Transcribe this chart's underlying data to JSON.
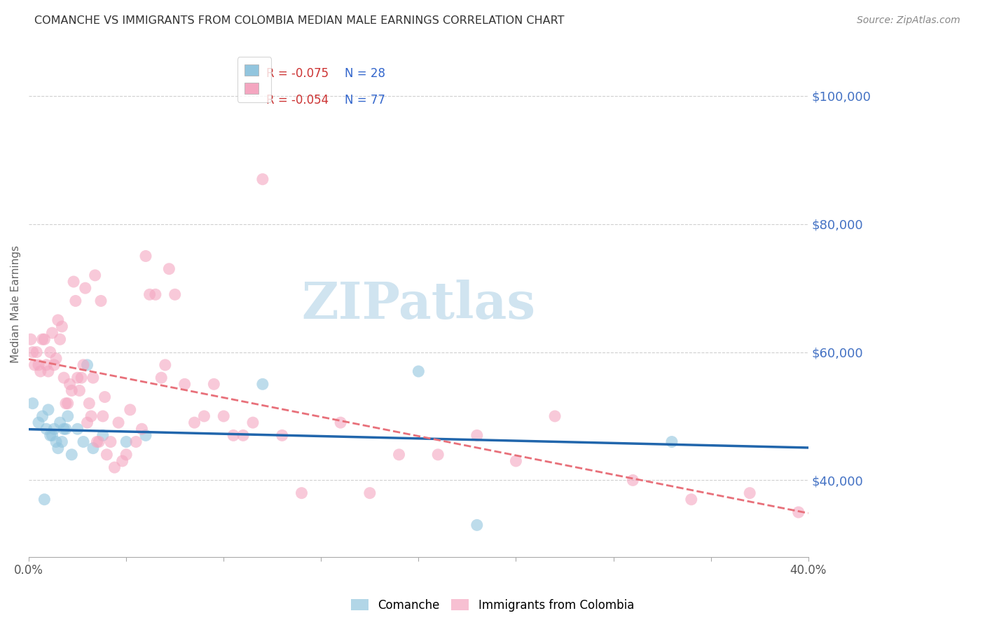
{
  "title": "COMANCHE VS IMMIGRANTS FROM COLOMBIA MEDIAN MALE EARNINGS CORRELATION CHART",
  "source": "Source: ZipAtlas.com",
  "ylabel": "Median Male Earnings",
  "ytick_labels": [
    "$40,000",
    "$60,000",
    "$80,000",
    "$100,000"
  ],
  "ytick_values": [
    40000,
    60000,
    80000,
    100000
  ],
  "ylim": [
    28000,
    107000
  ],
  "xlim": [
    0.0,
    0.4
  ],
  "xtick_vals": [
    0.0,
    0.05,
    0.1,
    0.15,
    0.2,
    0.25,
    0.3,
    0.35,
    0.4
  ],
  "xtick_labels": [
    "0.0%",
    "",
    "",
    "",
    "",
    "",
    "",
    "",
    "40.0%"
  ],
  "comanche_label": "Comanche",
  "colombia_label": "Immigrants from Colombia",
  "comanche_color": "#92c5de",
  "colombia_color": "#f4a6c0",
  "trendline_blue_color": "#2166ac",
  "trendline_pink_color": "#e8707a",
  "watermark_text": "ZIPatlas",
  "watermark_color": "#d0e4f0",
  "background_color": "#ffffff",
  "grid_color": "#d0d0d0",
  "title_color": "#333333",
  "right_tick_color": "#4472c4",
  "legend_r1": "R = -0.075",
  "legend_n1": "N = 28",
  "legend_r2": "R = -0.054",
  "legend_n2": "N = 77",
  "legend_r_color": "#cc3333",
  "legend_n_color": "#3366cc",
  "comanche_x": [
    0.002,
    0.005,
    0.007,
    0.008,
    0.009,
    0.01,
    0.011,
    0.012,
    0.013,
    0.014,
    0.015,
    0.016,
    0.017,
    0.018,
    0.019,
    0.02,
    0.022,
    0.025,
    0.028,
    0.03,
    0.033,
    0.038,
    0.05,
    0.06,
    0.12,
    0.2,
    0.23,
    0.33
  ],
  "comanche_y": [
    52000,
    49000,
    50000,
    37000,
    48000,
    51000,
    47000,
    47000,
    48000,
    46000,
    45000,
    49000,
    46000,
    48000,
    48000,
    50000,
    44000,
    48000,
    46000,
    58000,
    45000,
    47000,
    46000,
    47000,
    55000,
    57000,
    33000,
    46000
  ],
  "colombia_x": [
    0.001,
    0.002,
    0.003,
    0.004,
    0.005,
    0.006,
    0.007,
    0.008,
    0.009,
    0.01,
    0.011,
    0.012,
    0.013,
    0.014,
    0.015,
    0.016,
    0.017,
    0.018,
    0.019,
    0.02,
    0.021,
    0.022,
    0.023,
    0.024,
    0.025,
    0.026,
    0.027,
    0.028,
    0.029,
    0.03,
    0.031,
    0.032,
    0.033,
    0.034,
    0.035,
    0.036,
    0.037,
    0.038,
    0.039,
    0.04,
    0.042,
    0.044,
    0.046,
    0.048,
    0.05,
    0.052,
    0.055,
    0.058,
    0.06,
    0.062,
    0.065,
    0.068,
    0.07,
    0.072,
    0.075,
    0.08,
    0.085,
    0.09,
    0.095,
    0.1,
    0.105,
    0.11,
    0.115,
    0.12,
    0.13,
    0.14,
    0.16,
    0.175,
    0.19,
    0.21,
    0.23,
    0.25,
    0.27,
    0.31,
    0.34,
    0.37,
    0.395
  ],
  "colombia_y": [
    62000,
    60000,
    58000,
    60000,
    58000,
    57000,
    62000,
    62000,
    58000,
    57000,
    60000,
    63000,
    58000,
    59000,
    65000,
    62000,
    64000,
    56000,
    52000,
    52000,
    55000,
    54000,
    71000,
    68000,
    56000,
    54000,
    56000,
    58000,
    70000,
    49000,
    52000,
    50000,
    56000,
    72000,
    46000,
    46000,
    68000,
    50000,
    53000,
    44000,
    46000,
    42000,
    49000,
    43000,
    44000,
    51000,
    46000,
    48000,
    75000,
    69000,
    69000,
    56000,
    58000,
    73000,
    69000,
    55000,
    49000,
    50000,
    55000,
    50000,
    47000,
    47000,
    49000,
    87000,
    47000,
    38000,
    49000,
    38000,
    44000,
    44000,
    47000,
    43000,
    50000,
    40000,
    37000,
    38000,
    35000
  ]
}
